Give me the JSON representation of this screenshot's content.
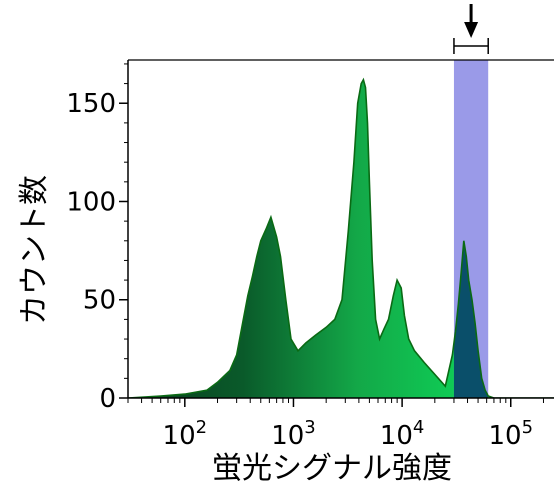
{
  "chart_data": {
    "type": "area",
    "title": "",
    "xlabel": "蛍光シグナル強度",
    "ylabel": "カウント数",
    "x_scale": "log",
    "xlim": [
      30,
      250000
    ],
    "ylim": [
      0,
      172
    ],
    "y_ticks": [
      0,
      50,
      100,
      150
    ],
    "x_ticks": [
      {
        "base": "10",
        "exp": "2",
        "value": 100
      },
      {
        "base": "10",
        "exp": "3",
        "value": 1000
      },
      {
        "base": "10",
        "exp": "4",
        "value": 10000
      },
      {
        "base": "10",
        "exp": "5",
        "value": 100000
      }
    ],
    "grid": false,
    "colors": {
      "fill_dark": "#0a3d1e",
      "fill_mid": "#1a8a40",
      "fill_light": "#0fcc55",
      "fill_gated": "#0a4f6a",
      "outline": "#0a6a14",
      "gate": "#9a9ae8",
      "arrow": "#000000"
    },
    "gate": {
      "x_min": 30000,
      "x_max": 62000
    },
    "histogram": {
      "x": [
        30,
        60,
        100,
        160,
        200,
        260,
        300,
        340,
        380,
        420,
        460,
        500,
        560,
        620,
        700,
        760,
        850,
        950,
        1100,
        1300,
        1600,
        2000,
        2400,
        2800,
        3200,
        3600,
        3900,
        4200,
        4400,
        4600,
        4800,
        5000,
        5300,
        5700,
        6200,
        6800,
        7500,
        8300,
        9000,
        9800,
        10500,
        11500,
        13000,
        16000,
        20000,
        25000,
        29000,
        31000,
        33000,
        35000,
        37000,
        39000,
        41000,
        44000,
        47000,
        50000,
        54000,
        58000,
        62000,
        70000,
        100000,
        250000
      ],
      "y": [
        0,
        1,
        2,
        4,
        8,
        14,
        22,
        38,
        52,
        62,
        72,
        80,
        86,
        92,
        82,
        72,
        50,
        30,
        24,
        28,
        32,
        36,
        40,
        50,
        85,
        120,
        150,
        160,
        162,
        158,
        140,
        110,
        70,
        40,
        30,
        35,
        40,
        52,
        60,
        56,
        42,
        30,
        24,
        18,
        12,
        6,
        22,
        34,
        48,
        64,
        80,
        72,
        60,
        50,
        38,
        24,
        10,
        4,
        1,
        0,
        0,
        0
      ]
    }
  }
}
